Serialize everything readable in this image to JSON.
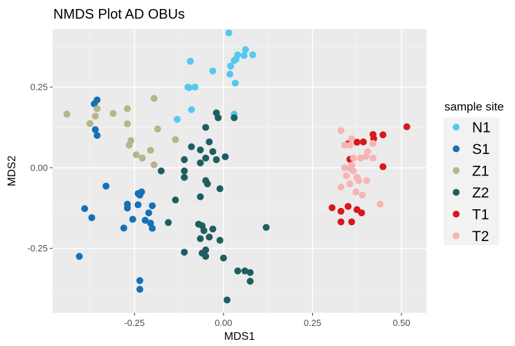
{
  "chart_data": {
    "type": "scatter",
    "title": "NMDS Plot AD OBUs",
    "xlabel": "MDS1",
    "ylabel": "MDS2",
    "xlim": [
      -0.48,
      0.57
    ],
    "ylim": [
      -0.45,
      0.43
    ],
    "xticks": [
      -0.25,
      0.0,
      0.25,
      0.5
    ],
    "xtick_labels": [
      "-0.25",
      "0.00",
      "0.25",
      "0.50"
    ],
    "yticks": [
      -0.25,
      0.0,
      0.25
    ],
    "ytick_labels": [
      "-0.25",
      "0.00",
      "0.25"
    ],
    "grid": true,
    "legend": {
      "title": "sample site",
      "position": "right"
    },
    "series": [
      {
        "name": "N1",
        "color": "#56C8EE",
        "points": [
          [
            0.015,
            0.418
          ],
          [
            0.062,
            0.366
          ],
          [
            0.082,
            0.35
          ],
          [
            0.04,
            0.35
          ],
          [
            0.058,
            0.348
          ],
          [
            0.03,
            0.332
          ],
          [
            0.035,
            0.336
          ],
          [
            0.02,
            0.315
          ],
          [
            -0.093,
            0.33
          ],
          [
            -0.03,
            0.3
          ],
          [
            0.018,
            0.29
          ],
          [
            0.033,
            0.262
          ],
          [
            -0.1,
            0.25
          ],
          [
            -0.08,
            0.25
          ],
          [
            -0.096,
            0.248
          ],
          [
            -0.09,
            0.18
          ],
          [
            0.03,
            0.166
          ],
          [
            -0.13,
            0.15
          ]
        ]
      },
      {
        "name": "S1",
        "color": "#1570B5",
        "points": [
          [
            -0.355,
            0.21
          ],
          [
            -0.363,
            0.198
          ],
          [
            -0.36,
            0.118
          ],
          [
            -0.355,
            0.1
          ],
          [
            -0.33,
            -0.057
          ],
          [
            -0.23,
            -0.075
          ],
          [
            -0.24,
            -0.08
          ],
          [
            -0.235,
            -0.085
          ],
          [
            -0.27,
            -0.113
          ],
          [
            -0.27,
            -0.125
          ],
          [
            -0.24,
            -0.115
          ],
          [
            -0.2,
            -0.118
          ],
          [
            -0.39,
            -0.127
          ],
          [
            -0.37,
            -0.155
          ],
          [
            -0.21,
            -0.14
          ],
          [
            -0.255,
            -0.16
          ],
          [
            -0.22,
            -0.163
          ],
          [
            -0.28,
            -0.187
          ],
          [
            -0.205,
            -0.172
          ],
          [
            -0.2,
            -0.188
          ],
          [
            -0.405,
            -0.275
          ],
          [
            -0.235,
            -0.35
          ],
          [
            -0.235,
            -0.377
          ]
        ]
      },
      {
        "name": "Z1",
        "color": "#B5B58A",
        "points": [
          [
            -0.44,
            0.166
          ],
          [
            -0.355,
            0.183
          ],
          [
            -0.36,
            0.16
          ],
          [
            -0.31,
            0.168
          ],
          [
            -0.195,
            0.215
          ],
          [
            -0.27,
            0.183
          ],
          [
            -0.27,
            0.136
          ],
          [
            -0.375,
            0.137
          ],
          [
            -0.185,
            0.12
          ],
          [
            -0.135,
            0.087
          ],
          [
            -0.26,
            0.084
          ],
          [
            -0.265,
            0.07
          ],
          [
            -0.205,
            0.054
          ],
          [
            -0.245,
            0.04
          ],
          [
            -0.228,
            0.03
          ],
          [
            -0.195,
            0.009
          ]
        ]
      },
      {
        "name": "Z2",
        "color": "#1E5E61",
        "points": [
          [
            -0.02,
            0.17
          ],
          [
            -0.015,
            0.155
          ],
          [
            0.03,
            0.155
          ],
          [
            -0.05,
            0.125
          ],
          [
            -0.04,
            0.08
          ],
          [
            -0.09,
            0.065
          ],
          [
            -0.03,
            0.05
          ],
          [
            -0.065,
            0.055
          ],
          [
            0.005,
            0.034
          ],
          [
            -0.02,
            0.025
          ],
          [
            -0.05,
            0.03
          ],
          [
            -0.11,
            0.025
          ],
          [
            -0.065,
            0.015
          ],
          [
            -0.175,
            -0.01
          ],
          [
            -0.11,
            -0.01
          ],
          [
            -0.11,
            -0.03
          ],
          [
            -0.05,
            -0.04
          ],
          [
            -0.045,
            -0.05
          ],
          [
            -0.01,
            -0.065
          ],
          [
            -0.065,
            -0.09
          ],
          [
            -0.135,
            -0.1
          ],
          [
            -0.155,
            -0.17
          ],
          [
            -0.07,
            -0.175
          ],
          [
            0.12,
            -0.185
          ],
          [
            -0.06,
            -0.18
          ],
          [
            -0.055,
            -0.195
          ],
          [
            -0.03,
            -0.19
          ],
          [
            -0.04,
            -0.215
          ],
          [
            -0.065,
            -0.22
          ],
          [
            -0.01,
            -0.225
          ],
          [
            -0.05,
            -0.255
          ],
          [
            -0.06,
            -0.265
          ],
          [
            -0.11,
            -0.262
          ],
          [
            -0.05,
            -0.275
          ],
          [
            0.0,
            -0.28
          ],
          [
            0.04,
            -0.32
          ],
          [
            0.06,
            -0.32
          ],
          [
            0.075,
            -0.325
          ],
          [
            0.075,
            -0.352
          ],
          [
            0.01,
            -0.41
          ]
        ]
      },
      {
        "name": "T1",
        "color": "#D7191C",
        "points": [
          [
            0.515,
            0.127
          ],
          [
            0.42,
            0.103
          ],
          [
            0.448,
            0.102
          ],
          [
            0.422,
            0.09
          ],
          [
            0.375,
            0.079
          ],
          [
            0.393,
            0.08
          ],
          [
            0.35,
            0.074
          ],
          [
            0.355,
            0.026
          ],
          [
            0.448,
            0.003
          ],
          [
            0.305,
            -0.124
          ],
          [
            0.33,
            -0.135
          ],
          [
            0.35,
            -0.12
          ],
          [
            0.375,
            -0.13
          ],
          [
            0.388,
            -0.14
          ],
          [
            0.33,
            -0.168
          ],
          [
            0.36,
            -0.168
          ]
        ]
      },
      {
        "name": "T2",
        "color": "#F7B4B4",
        "points": [
          [
            0.33,
            0.115
          ],
          [
            0.36,
            0.09
          ],
          [
            0.34,
            0.07
          ],
          [
            0.355,
            0.07
          ],
          [
            0.42,
            0.075
          ],
          [
            0.405,
            0.05
          ],
          [
            0.385,
            0.03
          ],
          [
            0.365,
            0.03
          ],
          [
            0.4,
            0.035
          ],
          [
            0.42,
            0.03
          ],
          [
            0.36,
            0.008
          ],
          [
            0.34,
            0.0
          ],
          [
            0.345,
            -0.025
          ],
          [
            0.375,
            -0.03
          ],
          [
            0.355,
            -0.002
          ],
          [
            0.365,
            -0.01
          ],
          [
            0.38,
            -0.04
          ],
          [
            0.402,
            -0.04
          ],
          [
            0.355,
            -0.05
          ],
          [
            0.33,
            -0.06
          ],
          [
            0.372,
            -0.075
          ],
          [
            0.39,
            -0.085
          ],
          [
            0.44,
            -0.113
          ]
        ]
      }
    ]
  }
}
